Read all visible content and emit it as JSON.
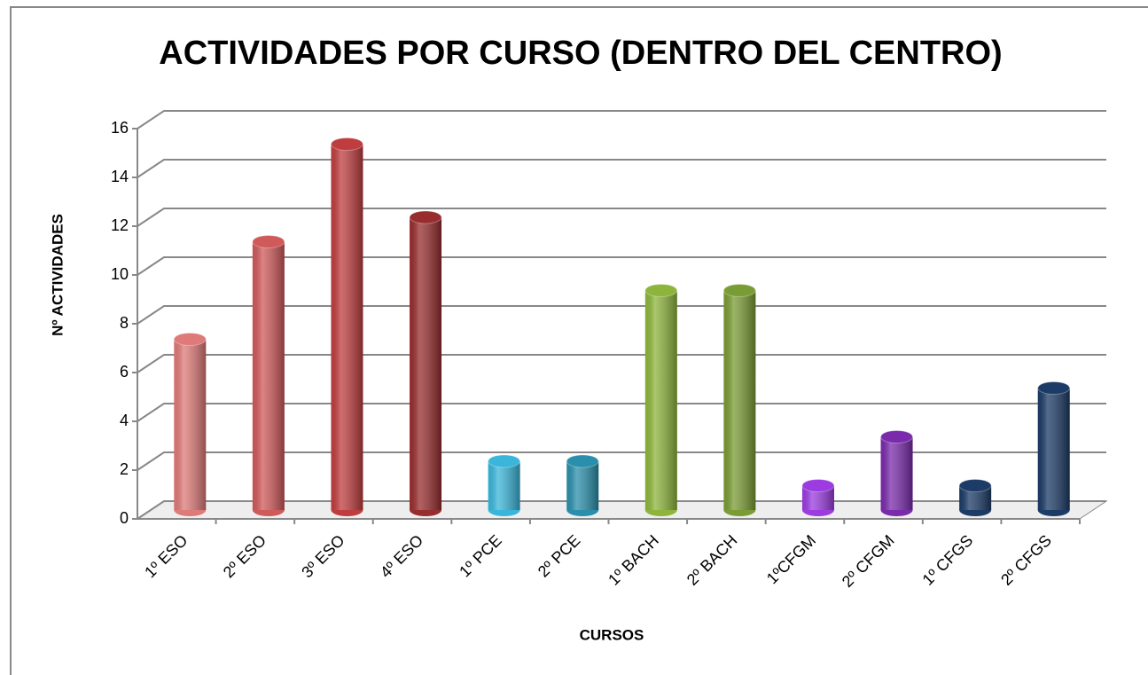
{
  "chart_data": {
    "type": "bar",
    "title": "ACTIVIDADES POR CURSO (DENTRO DEL CENTRO)",
    "x_label": "CURSOS",
    "y_label": "Nº ACTIVIDADES",
    "categories": [
      "1º ESO",
      "2º ESO",
      "3º ESO",
      "4º ESO",
      "1º PCE",
      "2º PCE",
      "1º BACH",
      "2º BACH",
      "1ºCFGM",
      "2º CFGM",
      "1º CFGS",
      "2º CFGS"
    ],
    "values": [
      7,
      11,
      15,
      12,
      2,
      2,
      9,
      9,
      1,
      3,
      1,
      5
    ],
    "colors": [
      "#de7a78",
      "#d0595a",
      "#c03d3f",
      "#982d2f",
      "#3ab6da",
      "#2a8fab",
      "#8db53c",
      "#7a9c34",
      "#9b3be0",
      "#7a2bab",
      "#1c3b66",
      "#1c3b66"
    ],
    "ylim": [
      0,
      16
    ],
    "yticks": [
      0,
      2,
      4,
      6,
      8,
      10,
      12,
      14,
      16
    ],
    "grid": true
  }
}
